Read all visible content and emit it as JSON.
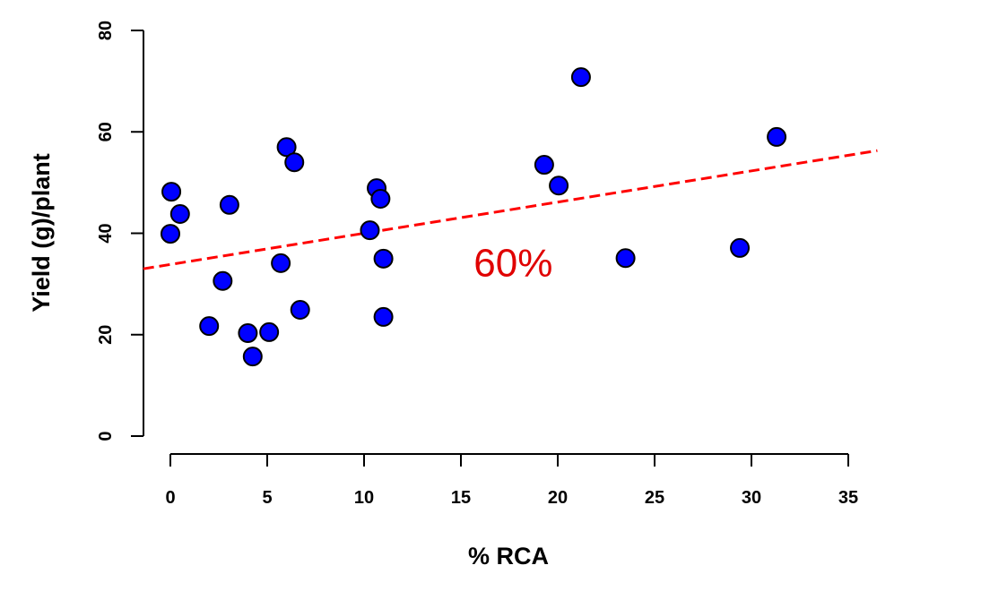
{
  "chart_data": {
    "type": "scatter",
    "title": "",
    "xlabel": "% RCA",
    "ylabel": "Yield (g)/plant",
    "xlim": [
      0,
      35
    ],
    "ylim": [
      0,
      80
    ],
    "xticks": [
      "0",
      "5",
      "10",
      "15",
      "20",
      "25",
      "30",
      "35"
    ],
    "yticks": [
      "0",
      "20",
      "40",
      "60",
      "80"
    ],
    "grid": false,
    "point_color": "#0000ff",
    "points": [
      {
        "x": 0.0,
        "y": 39.9
      },
      {
        "x": 0.05,
        "y": 48.2
      },
      {
        "x": 0.5,
        "y": 43.8
      },
      {
        "x": 2.0,
        "y": 21.7
      },
      {
        "x": 2.7,
        "y": 30.6
      },
      {
        "x": 3.05,
        "y": 45.6
      },
      {
        "x": 4.0,
        "y": 20.3
      },
      {
        "x": 4.25,
        "y": 15.7
      },
      {
        "x": 5.1,
        "y": 20.5
      },
      {
        "x": 5.7,
        "y": 34.1
      },
      {
        "x": 6.0,
        "y": 57.0
      },
      {
        "x": 6.4,
        "y": 54.0
      },
      {
        "x": 6.7,
        "y": 24.9
      },
      {
        "x": 10.3,
        "y": 40.6
      },
      {
        "x": 10.65,
        "y": 48.9
      },
      {
        "x": 10.85,
        "y": 46.8
      },
      {
        "x": 11.0,
        "y": 35.0
      },
      {
        "x": 11.0,
        "y": 23.5
      },
      {
        "x": 19.3,
        "y": 53.5
      },
      {
        "x": 20.05,
        "y": 49.4
      },
      {
        "x": 21.2,
        "y": 70.8
      },
      {
        "x": 23.5,
        "y": 35.1
      },
      {
        "x": 29.4,
        "y": 37.1
      },
      {
        "x": 31.3,
        "y": 59.0
      }
    ],
    "trendline": {
      "intercept": 33.85,
      "slope": 0.615,
      "x_range": [
        -1.4,
        36.5
      ],
      "color": "#ff0000",
      "style": "dashed"
    },
    "annotation": {
      "text": "60%",
      "x": 17.7,
      "y": 34,
      "color": "#e00000"
    }
  }
}
